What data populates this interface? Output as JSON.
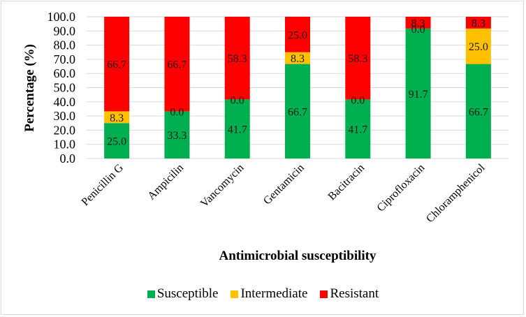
{
  "chart_data": {
    "type": "bar",
    "stacked": true,
    "title": "",
    "xlabel": "Antimicrobial susceptibility",
    "ylabel": "Percentage (%)",
    "ylim": [
      0,
      100
    ],
    "yticks": [
      "0.0",
      "10.0",
      "20.0",
      "30.0",
      "40.0",
      "50.0",
      "60.0",
      "70.0",
      "80.0",
      "90.0",
      "100.0"
    ],
    "grid": true,
    "legend_position": "bottom",
    "categories": [
      "Penicillin G",
      "Ampicilin",
      "Vancomycin",
      "Gentamicin",
      "Bacitracin",
      "Ciprofloxacin",
      "Chloramphenicol"
    ],
    "series": [
      {
        "name": "Susceptible",
        "color": "#00b050",
        "values": [
          25.0,
          33.3,
          41.7,
          66.7,
          41.7,
          91.7,
          66.7
        ],
        "labels": [
          "25.0",
          "33.3",
          "41.7",
          "66.7",
          "41.7",
          "91.7",
          "66.7"
        ]
      },
      {
        "name": "Intermediate",
        "color": "#ffc000",
        "values": [
          8.3,
          0.0,
          0.0,
          8.3,
          0.0,
          0.0,
          25.0
        ],
        "labels": [
          "8.3",
          "0.0",
          "0.0",
          "8.3",
          "0.0",
          "0.0",
          "25.0"
        ]
      },
      {
        "name": "Resistant",
        "color": "#ff0000",
        "values": [
          66.7,
          66.7,
          58.3,
          25.0,
          58.3,
          8.3,
          8.3
        ],
        "labels": [
          "66.7",
          "66.7",
          "58.3",
          "25.0",
          "58.3",
          "8.3",
          "8.3"
        ]
      }
    ]
  }
}
